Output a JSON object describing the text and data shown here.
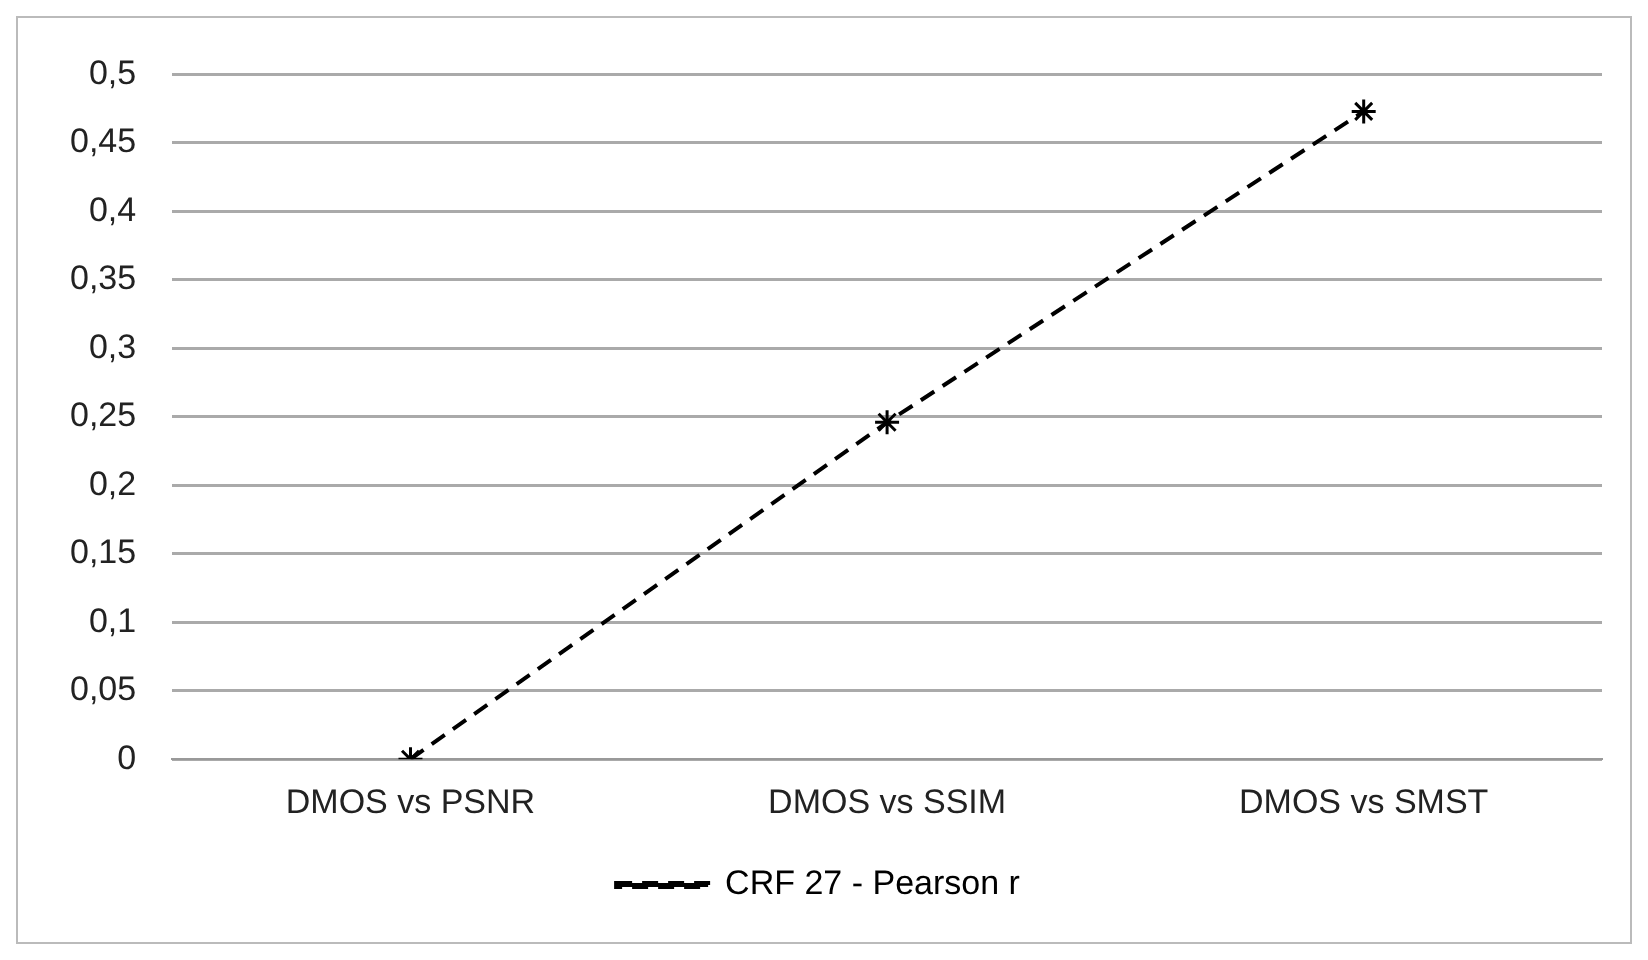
{
  "chart_data": {
    "type": "line",
    "categories": [
      "DMOS vs PSNR",
      "DMOS vs SSIM",
      "DMOS vs SMST"
    ],
    "series": [
      {
        "name": "CRF 27 - Pearson r",
        "color": "#000000",
        "values": [
          0,
          0.246,
          0.473
        ]
      }
    ],
    "ylim": [
      0,
      0.5
    ],
    "yticks": [
      {
        "value": 0,
        "label": "0"
      },
      {
        "value": 0.05,
        "label": "0,05"
      },
      {
        "value": 0.1,
        "label": "0,1"
      },
      {
        "value": 0.15,
        "label": "0,15"
      },
      {
        "value": 0.2,
        "label": "0,2"
      },
      {
        "value": 0.25,
        "label": "0,25"
      },
      {
        "value": 0.3,
        "label": "0,3"
      },
      {
        "value": 0.35,
        "label": "0,35"
      },
      {
        "value": 0.4,
        "label": "0,4"
      },
      {
        "value": 0.45,
        "label": "0,45"
      },
      {
        "value": 0.5,
        "label": "0,5"
      }
    ],
    "grid": "y",
    "legend": "bottom",
    "marker": "cross",
    "line_style": "dashed"
  }
}
